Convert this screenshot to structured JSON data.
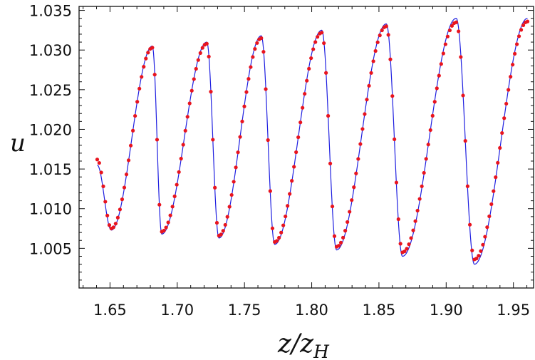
{
  "chart_data": {
    "type": "line",
    "xlabel_main": "z/z",
    "xlabel_sub": "H",
    "ylabel": "u",
    "xlim": [
      1.627,
      1.965
    ],
    "ylim": [
      1.0,
      1.0355
    ],
    "x_ticks": [
      "1.65",
      "1.70",
      "1.75",
      "1.80",
      "1.85",
      "1.90",
      "1.95"
    ],
    "x_tick_values": [
      1.65,
      1.7,
      1.75,
      1.8,
      1.85,
      1.9,
      1.95
    ],
    "y_ticks": [
      "1.005",
      "1.010",
      "1.015",
      "1.020",
      "1.025",
      "1.030",
      "1.035"
    ],
    "y_tick_values": [
      1.005,
      1.01,
      1.015,
      1.02,
      1.025,
      1.03,
      1.035
    ],
    "grid": false,
    "series": [
      {
        "style": "solid-line",
        "color": "#1f1fe0",
        "keypoints": [
          [
            1.6405,
            1.0155
          ],
          [
            1.651,
            1.0073
          ],
          [
            1.6815,
            1.0305
          ],
          [
            1.6885,
            1.0068
          ],
          [
            1.722,
            1.031
          ],
          [
            1.731,
            1.0063
          ],
          [
            1.7625,
            1.0318
          ],
          [
            1.7725,
            1.0055
          ],
          [
            1.8075,
            1.0325
          ],
          [
            1.8185,
            1.0048
          ],
          [
            1.8555,
            1.0333
          ],
          [
            1.8675,
            1.004
          ],
          [
            1.9075,
            1.034
          ],
          [
            1.921,
            1.003
          ],
          [
            1.9605,
            1.034
          ]
        ]
      },
      {
        "style": "points",
        "color": "#e8141e",
        "keypoints": [
          [
            1.6405,
            1.0162
          ],
          [
            1.651,
            1.0075
          ],
          [
            1.6815,
            1.0303
          ],
          [
            1.6885,
            1.0071
          ],
          [
            1.722,
            1.0308
          ],
          [
            1.731,
            1.0066
          ],
          [
            1.7625,
            1.0315
          ],
          [
            1.7725,
            1.0058
          ],
          [
            1.8075,
            1.0322
          ],
          [
            1.8185,
            1.0052
          ],
          [
            1.8555,
            1.033
          ],
          [
            1.8675,
            1.0045
          ],
          [
            1.9075,
            1.0335
          ],
          [
            1.921,
            1.0036
          ],
          [
            1.9605,
            1.0336
          ]
        ]
      }
    ]
  },
  "colors": {
    "frame": "#111111",
    "line": "#1f1fe0",
    "points": "#e8141e"
  }
}
